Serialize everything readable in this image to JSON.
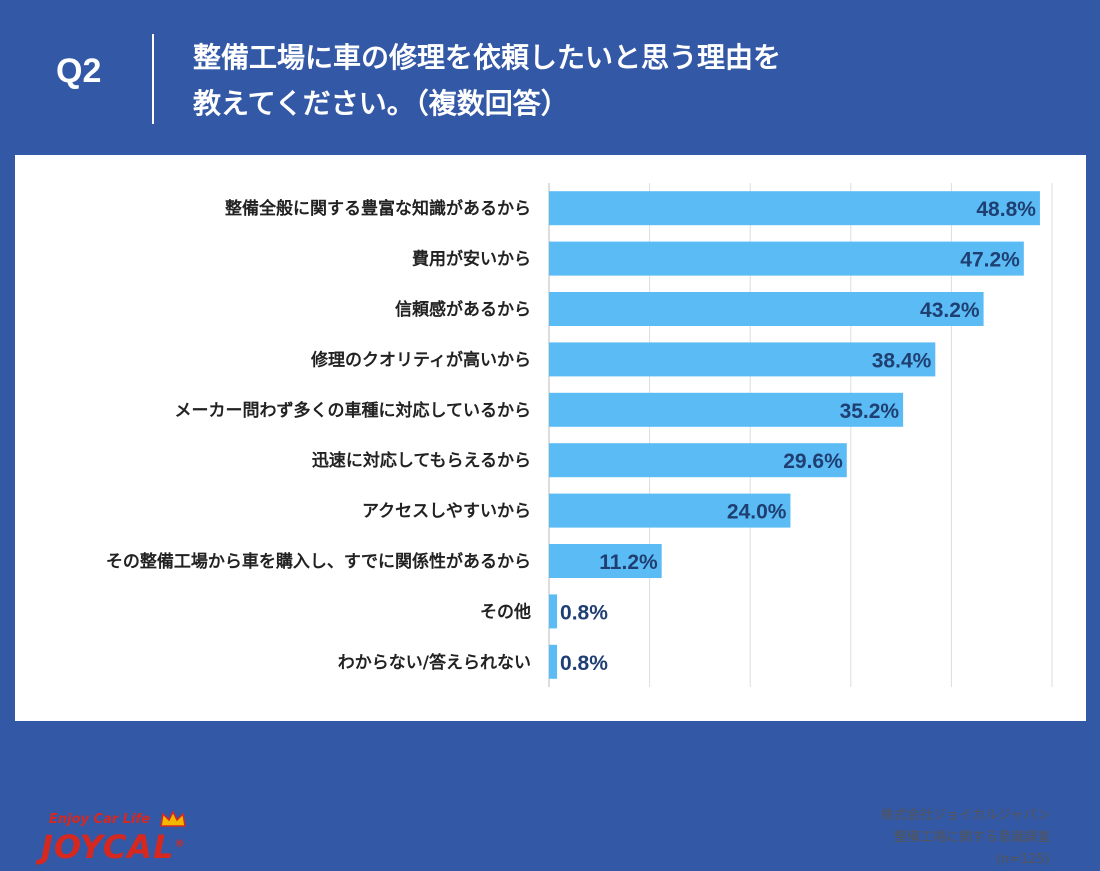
{
  "header": {
    "question_no": "Q2",
    "title_line1": "整備工場に車の修理を依頼したいと思う理由を",
    "title_line2": "教えてください。（複数回答）"
  },
  "source": {
    "company": "株式会社ジョイカルジャパン",
    "survey": "整備工場に関する意識調査",
    "n": "(n=125)"
  },
  "logo": {
    "tagline": "Enjoy Car Life",
    "word": "JOYCAL",
    "trademark": "®"
  },
  "colors": {
    "header_bg": "#3358a6",
    "bar": "#5bbcf5",
    "value_text": "#1f3f73",
    "logo_red": "#d7281f",
    "crown_yellow": "#f2b800"
  },
  "chart_data": {
    "type": "bar",
    "orientation": "horizontal",
    "unit": "%",
    "categories": [
      "整備全般に関する豊富な知識があるから",
      "費用が安いから",
      "信頼感があるから",
      "修理のクオリティが高いから",
      "メーカー問わず多くの車種に対応しているから",
      "迅速に対応してもらえるから",
      "アクセスしやすいから",
      "その整備工場から車を購入し、すでに関係性があるから",
      "その他",
      "わからない/答えられない"
    ],
    "values": [
      48.8,
      47.2,
      43.2,
      38.4,
      35.2,
      29.6,
      24.0,
      11.2,
      0.8,
      0.8
    ],
    "value_labels": [
      "48.8%",
      "47.2%",
      "43.2%",
      "38.4%",
      "35.2%",
      "29.6%",
      "24.0%",
      "11.2%",
      "0.8%",
      "0.8%"
    ],
    "xlim": [
      0,
      50
    ],
    "grid": true,
    "legend": "none"
  }
}
